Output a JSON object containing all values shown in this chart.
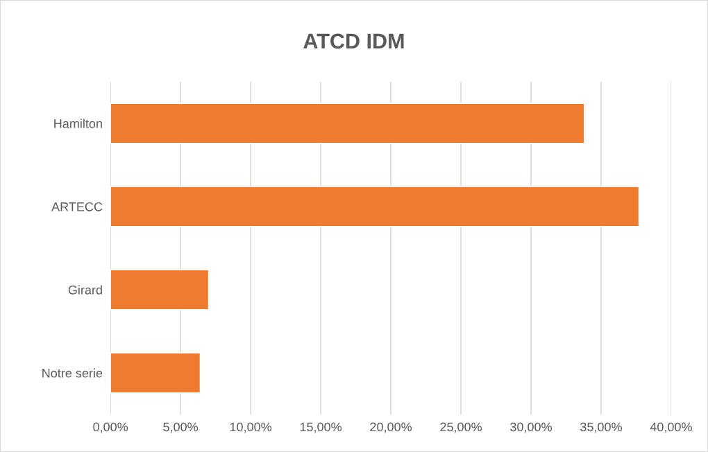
{
  "chart_data": {
    "type": "bar",
    "orientation": "horizontal",
    "title": "ATCD IDM",
    "categories": [
      "Hamilton",
      "ARTECC",
      "Girard",
      "Notre serie"
    ],
    "values": [
      33.8,
      37.7,
      7.0,
      6.4
    ],
    "color": "#ef7b30",
    "xlim": [
      0,
      40
    ],
    "xticks": [
      {
        "value": 0,
        "label": "0,00%"
      },
      {
        "value": 5,
        "label": "5,00%"
      },
      {
        "value": 10,
        "label": "10,00%"
      },
      {
        "value": 15,
        "label": "15,00%"
      },
      {
        "value": 20,
        "label": "20,00%"
      },
      {
        "value": 25,
        "label": "25,00%"
      },
      {
        "value": 30,
        "label": "30,00%"
      },
      {
        "value": 35,
        "label": "35,00%"
      },
      {
        "value": 40,
        "label": "40,00%"
      }
    ],
    "grid": "x",
    "legend": false
  }
}
